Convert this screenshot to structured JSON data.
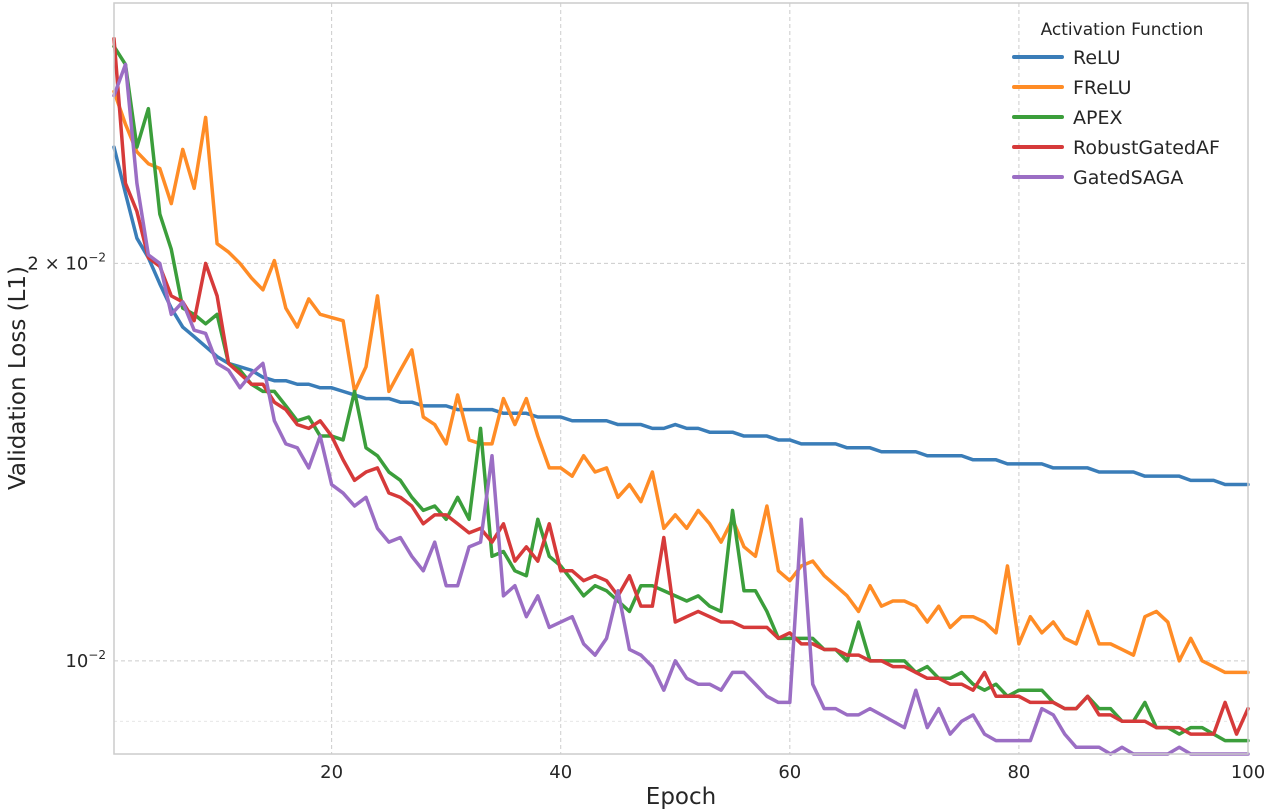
{
  "chart_data": {
    "type": "line",
    "xlabel": "Epoch",
    "ylabel": "Validation Loss (L1)",
    "xlim": [
      1,
      100
    ],
    "ylim": [
      0.0085,
      0.0315
    ],
    "yscale": "log",
    "grid": true,
    "x_ticks": [
      20,
      40,
      60,
      80,
      100
    ],
    "y_major_ticks": [
      {
        "value": 0.01,
        "base": "10",
        "exp": "−2",
        "coef": ""
      },
      {
        "value": 0.02,
        "base": "10",
        "exp": "−2",
        "coef": "2 × "
      }
    ],
    "y_minor_gridlines": [
      0.009
    ],
    "legend": {
      "title": "Activation Function",
      "position": "top-right"
    },
    "series": [
      {
        "name": "ReLU",
        "color": "#3a7db8",
        "values": [
          0.0245,
          0.0226,
          0.0209,
          0.0202,
          0.0193,
          0.0185,
          0.0179,
          0.0176,
          0.0173,
          0.017,
          0.0168,
          0.0167,
          0.0166,
          0.0164,
          0.0163,
          0.0163,
          0.0162,
          0.0162,
          0.0161,
          0.0161,
          0.016,
          0.0159,
          0.0158,
          0.0158,
          0.0158,
          0.0157,
          0.0157,
          0.0156,
          0.0156,
          0.0156,
          0.0155,
          0.0155,
          0.0155,
          0.0155,
          0.0154,
          0.0154,
          0.0154,
          0.0153,
          0.0153,
          0.0153,
          0.0152,
          0.0152,
          0.0152,
          0.0152,
          0.0151,
          0.0151,
          0.0151,
          0.015,
          0.015,
          0.0151,
          0.015,
          0.015,
          0.0149,
          0.0149,
          0.0149,
          0.0148,
          0.0148,
          0.0148,
          0.0147,
          0.0147,
          0.0146,
          0.0146,
          0.0146,
          0.0146,
          0.0145,
          0.0145,
          0.0145,
          0.0144,
          0.0144,
          0.0144,
          0.0144,
          0.0143,
          0.0143,
          0.0143,
          0.0143,
          0.0142,
          0.0142,
          0.0142,
          0.0141,
          0.0141,
          0.0141,
          0.0141,
          0.014,
          0.014,
          0.014,
          0.014,
          0.0139,
          0.0139,
          0.0139,
          0.0139,
          0.0138,
          0.0138,
          0.0138,
          0.0138,
          0.0137,
          0.0137,
          0.0137,
          0.0136,
          0.0136,
          0.0136
        ]
      },
      {
        "name": "FReLU",
        "color": "#ff8c26",
        "values": [
          0.027,
          0.0255,
          0.0243,
          0.0238,
          0.0236,
          0.0222,
          0.0244,
          0.0228,
          0.0258,
          0.0207,
          0.0204,
          0.02,
          0.0195,
          0.0191,
          0.0201,
          0.0185,
          0.0179,
          0.0188,
          0.0183,
          0.0182,
          0.0181,
          0.016,
          0.0167,
          0.0189,
          0.016,
          0.0166,
          0.0172,
          0.0153,
          0.0151,
          0.0146,
          0.0159,
          0.0147,
          0.0146,
          0.0146,
          0.0158,
          0.0151,
          0.0158,
          0.0148,
          0.014,
          0.014,
          0.0138,
          0.0143,
          0.0139,
          0.014,
          0.0133,
          0.0136,
          0.0132,
          0.0139,
          0.0126,
          0.0129,
          0.0126,
          0.013,
          0.0127,
          0.0123,
          0.0128,
          0.0122,
          0.012,
          0.0131,
          0.0117,
          0.0115,
          0.0118,
          0.0119,
          0.0116,
          0.0114,
          0.0112,
          0.0109,
          0.0114,
          0.011,
          0.0111,
          0.0111,
          0.011,
          0.0107,
          0.011,
          0.0106,
          0.0108,
          0.0108,
          0.0107,
          0.0105,
          0.0118,
          0.0103,
          0.0108,
          0.0105,
          0.0107,
          0.0104,
          0.0103,
          0.0109,
          0.0103,
          0.0103,
          0.0102,
          0.0101,
          0.0108,
          0.0109,
          0.0107,
          0.01,
          0.0104,
          0.01,
          0.0099,
          0.0098,
          0.0098,
          0.0098
        ]
      },
      {
        "name": "APEX",
        "color": "#3b9e3b",
        "values": [
          0.0292,
          0.0283,
          0.0245,
          0.0262,
          0.0218,
          0.0205,
          0.0185,
          0.0183,
          0.018,
          0.0183,
          0.0168,
          0.0166,
          0.0162,
          0.016,
          0.016,
          0.0156,
          0.0152,
          0.0153,
          0.0148,
          0.0148,
          0.0147,
          0.016,
          0.0145,
          0.0143,
          0.0139,
          0.0137,
          0.0133,
          0.013,
          0.0131,
          0.0128,
          0.0133,
          0.0128,
          0.015,
          0.012,
          0.0121,
          0.0117,
          0.0116,
          0.0128,
          0.012,
          0.0118,
          0.0115,
          0.0112,
          0.0114,
          0.0113,
          0.0111,
          0.0109,
          0.0114,
          0.0114,
          0.0113,
          0.0112,
          0.0111,
          0.0112,
          0.011,
          0.0109,
          0.013,
          0.0113,
          0.0113,
          0.0109,
          0.0104,
          0.0104,
          0.0104,
          0.0104,
          0.0102,
          0.0102,
          0.01,
          0.0107,
          0.01,
          0.01,
          0.01,
          0.01,
          0.0098,
          0.0099,
          0.0097,
          0.0097,
          0.0098,
          0.0096,
          0.0095,
          0.0096,
          0.0094,
          0.0095,
          0.0095,
          0.0095,
          0.0093,
          0.0092,
          0.0092,
          0.0094,
          0.0092,
          0.0092,
          0.009,
          0.009,
          0.0093,
          0.0089,
          0.0089,
          0.0088,
          0.0089,
          0.0089,
          0.0088,
          0.0087,
          0.0087,
          0.0087
        ]
      },
      {
        "name": "RobustGatedAF",
        "color": "#d63a3a",
        "values": [
          0.0296,
          0.023,
          0.0219,
          0.0202,
          0.0199,
          0.0189,
          0.0187,
          0.0181,
          0.02,
          0.0189,
          0.0168,
          0.0165,
          0.0162,
          0.0162,
          0.0157,
          0.0155,
          0.0151,
          0.015,
          0.0152,
          0.0148,
          0.0142,
          0.0137,
          0.0139,
          0.014,
          0.0134,
          0.0133,
          0.0131,
          0.0127,
          0.0129,
          0.0129,
          0.0127,
          0.0125,
          0.0126,
          0.0123,
          0.0127,
          0.0119,
          0.0122,
          0.0119,
          0.0127,
          0.0117,
          0.0117,
          0.0115,
          0.0116,
          0.0115,
          0.0112,
          0.0116,
          0.011,
          0.011,
          0.0124,
          0.0107,
          0.0108,
          0.0109,
          0.0108,
          0.0107,
          0.0107,
          0.0106,
          0.0106,
          0.0106,
          0.0104,
          0.0105,
          0.0103,
          0.0103,
          0.0102,
          0.0102,
          0.0101,
          0.0101,
          0.01,
          0.01,
          0.0099,
          0.0099,
          0.0098,
          0.0097,
          0.0097,
          0.0096,
          0.0096,
          0.0095,
          0.0098,
          0.0094,
          0.0094,
          0.0094,
          0.0093,
          0.0093,
          0.0093,
          0.0092,
          0.0092,
          0.0094,
          0.0091,
          0.0091,
          0.009,
          0.009,
          0.009,
          0.0089,
          0.0089,
          0.0089,
          0.0088,
          0.0088,
          0.0088,
          0.0093,
          0.0088,
          0.0092
        ]
      },
      {
        "name": "GatedSAGA",
        "color": "#9b6ec4",
        "values": [
          0.0268,
          0.0283,
          0.023,
          0.0203,
          0.02,
          0.0183,
          0.0187,
          0.0178,
          0.0177,
          0.0168,
          0.0166,
          0.0161,
          0.0165,
          0.0168,
          0.0152,
          0.0146,
          0.0145,
          0.014,
          0.0148,
          0.0136,
          0.0134,
          0.0131,
          0.0133,
          0.0126,
          0.0123,
          0.0124,
          0.012,
          0.0117,
          0.0123,
          0.0114,
          0.0114,
          0.0122,
          0.0123,
          0.0143,
          0.0112,
          0.0114,
          0.0108,
          0.0112,
          0.0106,
          0.0107,
          0.0108,
          0.0103,
          0.0101,
          0.0104,
          0.0113,
          0.0102,
          0.0101,
          0.0099,
          0.0095,
          0.01,
          0.0097,
          0.0096,
          0.0096,
          0.0095,
          0.0098,
          0.0098,
          0.0096,
          0.0094,
          0.0093,
          0.0093,
          0.0128,
          0.0096,
          0.0092,
          0.0092,
          0.0091,
          0.0091,
          0.0092,
          0.0091,
          0.009,
          0.0089,
          0.0095,
          0.0089,
          0.0092,
          0.0088,
          0.009,
          0.0091,
          0.0088,
          0.0087,
          0.0087,
          0.0087,
          0.0087,
          0.0092,
          0.0091,
          0.0088,
          0.0086,
          0.0086,
          0.0086,
          0.0085,
          0.0086,
          0.0085,
          0.0085,
          0.0085,
          0.0085,
          0.0086,
          0.0085,
          0.0085,
          0.0085,
          0.0085,
          0.0085,
          0.0085
        ]
      }
    ]
  }
}
